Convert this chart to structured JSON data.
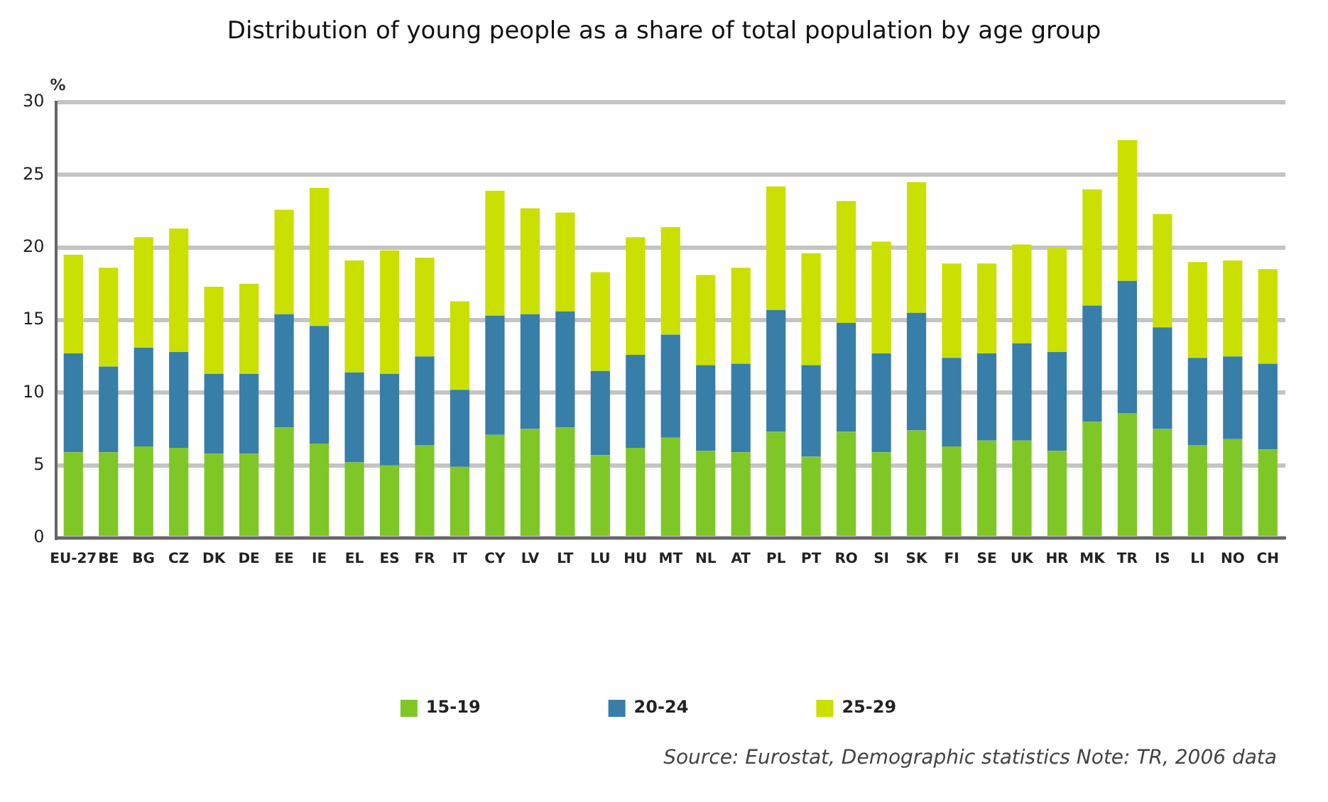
{
  "chart_data": {
    "type": "bar",
    "stacked": true,
    "title": "Distribution of young people as a share of total population by age group",
    "ylabel": "%",
    "categories": [
      "EU-27",
      "BE",
      "BG",
      "CZ",
      "DK",
      "DE",
      "EE",
      "IE",
      "EL",
      "ES",
      "FR",
      "IT",
      "CY",
      "LV",
      "LT",
      "LU",
      "HU",
      "MT",
      "NL",
      "AT",
      "PL",
      "PT",
      "RO",
      "SI",
      "SK",
      "FI",
      "SE",
      "UK",
      "HR",
      "MK",
      "TR",
      "IS",
      "LI",
      "NO",
      "CH"
    ],
    "series": [
      {
        "name": "15-19",
        "color": "#7ec726",
        "values": [
          5.9,
          5.9,
          6.3,
          6.2,
          5.8,
          5.8,
          7.6,
          6.5,
          5.2,
          5.0,
          6.4,
          4.9,
          7.1,
          7.5,
          7.6,
          5.7,
          6.2,
          6.9,
          6.0,
          5.9,
          7.3,
          5.6,
          7.3,
          5.9,
          7.4,
          6.3,
          6.7,
          6.7,
          6.0,
          8.0,
          8.6,
          7.5,
          6.4,
          6.8,
          6.1
        ]
      },
      {
        "name": "20-24",
        "color": "#377ea8",
        "values": [
          6.8,
          5.9,
          6.8,
          6.6,
          5.5,
          5.5,
          7.8,
          8.1,
          6.2,
          6.3,
          6.1,
          5.3,
          8.2,
          7.9,
          8.0,
          5.8,
          6.4,
          7.1,
          5.9,
          6.1,
          8.4,
          6.3,
          7.5,
          6.8,
          8.1,
          6.1,
          6.0,
          6.7,
          6.8,
          8.0,
          9.1,
          7.0,
          6.0,
          5.7,
          5.9
        ]
      },
      {
        "name": "25-29",
        "color": "#c9e000",
        "values": [
          6.8,
          6.8,
          7.6,
          8.5,
          6.0,
          6.2,
          7.2,
          9.5,
          7.7,
          8.5,
          6.8,
          6.1,
          8.6,
          7.3,
          6.8,
          6.8,
          8.1,
          7.4,
          6.2,
          6.6,
          8.5,
          7.7,
          8.4,
          7.7,
          9.0,
          6.5,
          6.2,
          6.8,
          7.2,
          8.0,
          9.7,
          7.8,
          6.6,
          6.6,
          6.5
        ]
      }
    ],
    "ylim": [
      0,
      30
    ],
    "yticks": [
      0,
      5,
      10,
      15,
      20,
      25,
      30
    ],
    "grid": "y",
    "legend": "bottom",
    "annotations": [
      "Source: Eurostat, Demographic statistics    Note: TR, 2006 data"
    ]
  }
}
